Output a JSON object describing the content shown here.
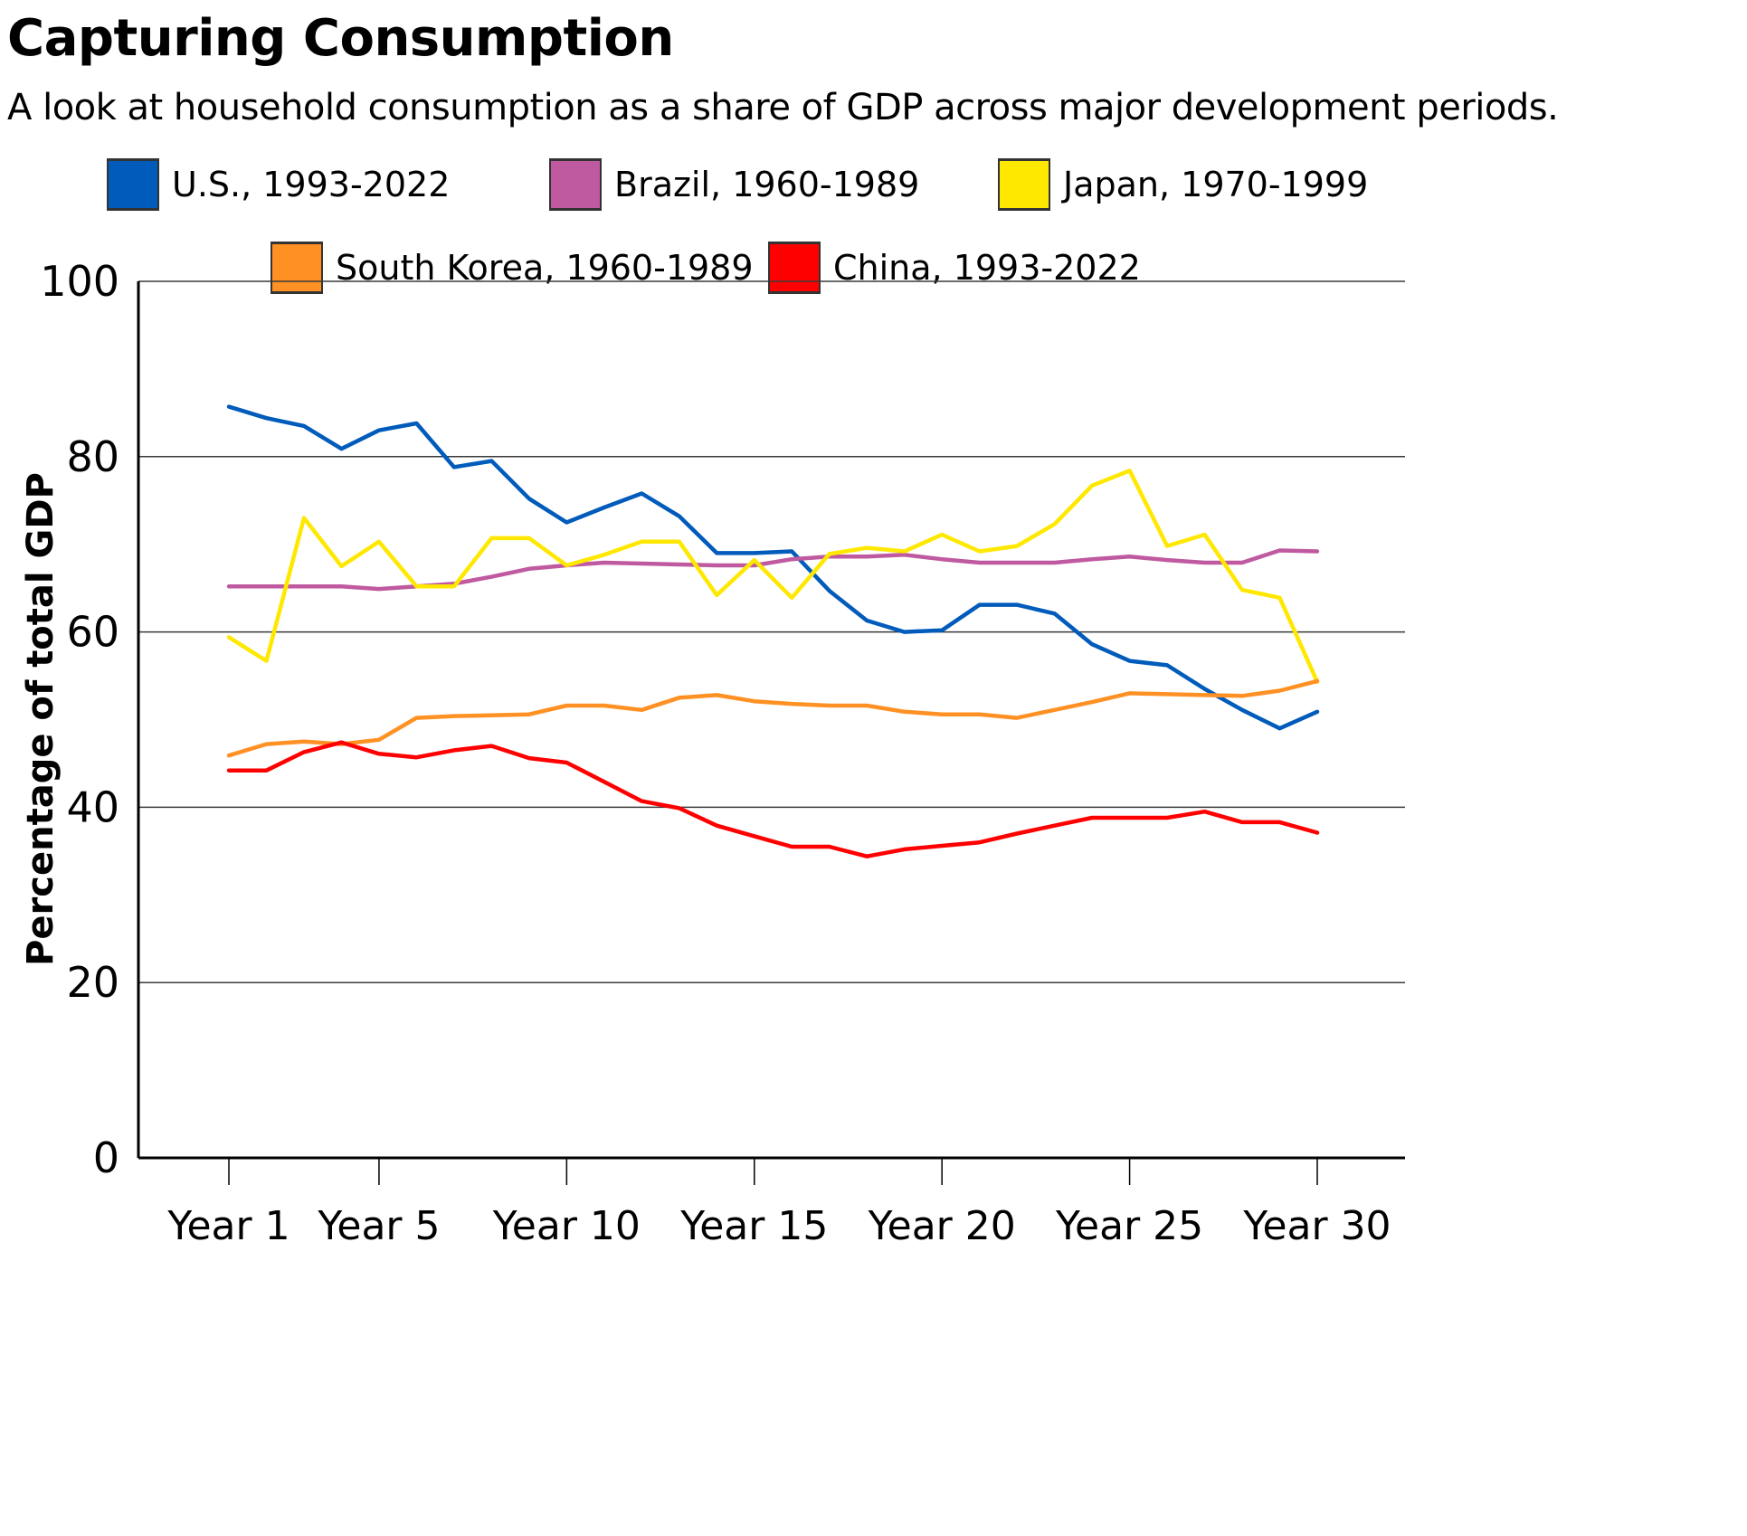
{
  "chart_data": {
    "type": "line",
    "title": "Capturing Consumption",
    "subtitle": "A look at household consumption as a share of GDP across major development periods.",
    "xlabel": "",
    "ylabel": "Percentage of total GDP",
    "ylim": [
      0,
      100
    ],
    "yticks": [
      0,
      20,
      40,
      60,
      80,
      100
    ],
    "x": [
      1,
      2,
      3,
      4,
      5,
      6,
      7,
      8,
      9,
      10,
      11,
      12,
      13,
      14,
      15,
      16,
      17,
      18,
      19,
      20,
      21,
      22,
      23,
      24,
      25,
      26,
      27,
      28,
      29,
      30
    ],
    "xticks": [
      {
        "x": 1,
        "label": "Year 1"
      },
      {
        "x": 5,
        "label": "Year 5"
      },
      {
        "x": 10,
        "label": "Year 10"
      },
      {
        "x": 15,
        "label": "Year 15"
      },
      {
        "x": 20,
        "label": "Year 20"
      },
      {
        "x": 25,
        "label": "Year 25"
      },
      {
        "x": 30,
        "label": "Year 30"
      }
    ],
    "grid": "horizontal",
    "legend_position": "top",
    "series": [
      {
        "name": "U.S., 1993-2022",
        "color": "#005BBB",
        "values": [
          85.7,
          84.4,
          83.5,
          80.9,
          83.0,
          83.8,
          78.8,
          79.5,
          75.2,
          72.5,
          74.2,
          75.8,
          73.2,
          69.0,
          69.0,
          69.2,
          64.7,
          61.3,
          60.0,
          60.2,
          63.1,
          63.1,
          62.1,
          58.6,
          56.7,
          56.2,
          53.5,
          51.1,
          49.0,
          50.9
        ]
      },
      {
        "name": "Brazil, 1960-1989",
        "color": "#C05AA0",
        "values": [
          65.2,
          65.2,
          65.2,
          65.2,
          64.9,
          65.2,
          65.5,
          66.3,
          67.2,
          67.6,
          67.9,
          67.8,
          67.7,
          67.6,
          67.6,
          68.3,
          68.6,
          68.6,
          68.8,
          68.3,
          67.9,
          67.9,
          67.9,
          68.3,
          68.6,
          68.2,
          67.9,
          67.9,
          69.3,
          69.2
        ]
      },
      {
        "name": "Japan, 1970-1999",
        "color": "#FFE800",
        "values": [
          59.4,
          56.7,
          73.0,
          67.5,
          70.3,
          65.2,
          65.2,
          70.7,
          70.7,
          67.6,
          68.8,
          70.3,
          70.3,
          64.2,
          68.2,
          63.9,
          68.9,
          69.6,
          69.2,
          71.1,
          69.2,
          69.8,
          72.3,
          76.7,
          78.4,
          69.8,
          71.1,
          64.8,
          63.9,
          54.3
        ]
      },
      {
        "name": "South Korea, 1960-1989",
        "color": "#FF9124",
        "values": [
          45.9,
          47.2,
          47.5,
          47.2,
          47.7,
          50.2,
          50.4,
          50.5,
          50.6,
          51.6,
          51.6,
          51.1,
          52.5,
          52.8,
          52.1,
          51.8,
          51.6,
          51.6,
          50.9,
          50.6,
          50.6,
          50.2,
          51.1,
          52.0,
          53.0,
          52.9,
          52.8,
          52.7,
          53.3,
          54.4
        ]
      },
      {
        "name": "China, 1993-2022",
        "color": "#FF0000",
        "values": [
          44.2,
          44.2,
          46.3,
          47.4,
          46.1,
          45.7,
          46.5,
          47.0,
          45.6,
          45.1,
          42.9,
          40.7,
          39.9,
          37.9,
          36.7,
          35.5,
          35.5,
          34.4,
          35.2,
          35.6,
          36.0,
          37.0,
          37.9,
          38.8,
          38.8,
          38.8,
          39.5,
          38.3,
          38.3,
          37.1
        ]
      }
    ]
  }
}
